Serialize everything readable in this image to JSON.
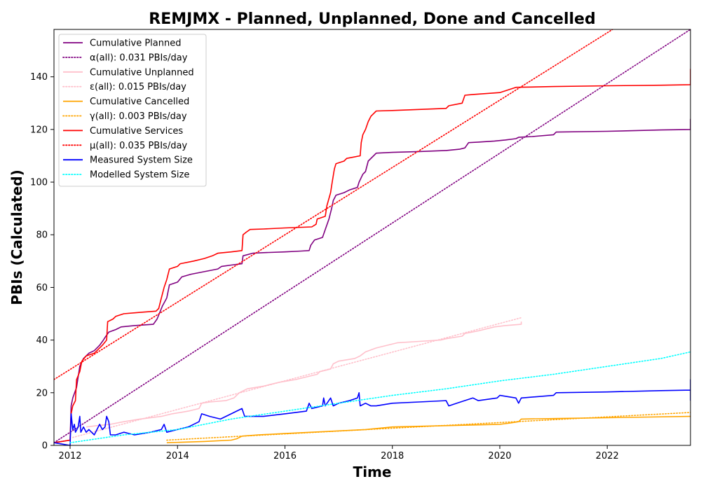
{
  "chart_data": {
    "type": "line",
    "title": "REMJMX - Planned, Unplanned, Done  and Cancelled",
    "xlabel": "Time",
    "ylabel": "PBIs (Calculated)",
    "xlim": [
      2011.7,
      2023.55
    ],
    "ylim": [
      0,
      158
    ],
    "x_ticks": [
      2012,
      2014,
      2016,
      2018,
      2020,
      2022
    ],
    "y_ticks": [
      0,
      20,
      40,
      60,
      80,
      100,
      120,
      140
    ],
    "grid": false,
    "legend_position": "upper-left",
    "series": [
      {
        "name": "Cumulative Planned",
        "color": "#800080",
        "style": "solid",
        "points": [
          [
            2011.7,
            1
          ],
          [
            2012.0,
            2
          ],
          [
            2012.02,
            15
          ],
          [
            2012.05,
            18
          ],
          [
            2012.12,
            22
          ],
          [
            2012.18,
            30
          ],
          [
            2012.25,
            33
          ],
          [
            2012.35,
            35
          ],
          [
            2012.45,
            36
          ],
          [
            2012.55,
            38
          ],
          [
            2012.62,
            40
          ],
          [
            2012.65,
            41
          ],
          [
            2012.72,
            43
          ],
          [
            2012.85,
            44
          ],
          [
            2012.95,
            45
          ],
          [
            2013.2,
            45.5
          ],
          [
            2013.55,
            46
          ],
          [
            2013.62,
            48
          ],
          [
            2013.72,
            53
          ],
          [
            2013.8,
            56
          ],
          [
            2013.85,
            61
          ],
          [
            2014.0,
            62
          ],
          [
            2014.08,
            64
          ],
          [
            2014.25,
            65
          ],
          [
            2014.5,
            66
          ],
          [
            2014.75,
            67
          ],
          [
            2014.82,
            68
          ],
          [
            2015.0,
            68.5
          ],
          [
            2015.2,
            69
          ],
          [
            2015.22,
            72
          ],
          [
            2015.4,
            73
          ],
          [
            2015.6,
            73.2
          ],
          [
            2016.0,
            73.5
          ],
          [
            2016.3,
            73.8
          ],
          [
            2016.45,
            74
          ],
          [
            2016.48,
            76
          ],
          [
            2016.55,
            78
          ],
          [
            2016.7,
            79
          ],
          [
            2016.75,
            82
          ],
          [
            2016.82,
            86
          ],
          [
            2016.87,
            90
          ],
          [
            2016.9,
            93
          ],
          [
            2016.95,
            95
          ],
          [
            2017.1,
            96
          ],
          [
            2017.2,
            97
          ],
          [
            2017.35,
            98
          ],
          [
            2017.38,
            100
          ],
          [
            2017.45,
            103
          ],
          [
            2017.5,
            104
          ],
          [
            2017.55,
            108
          ],
          [
            2017.65,
            110
          ],
          [
            2017.7,
            111
          ],
          [
            2018.0,
            111.3
          ],
          [
            2018.5,
            111.6
          ],
          [
            2019.0,
            112
          ],
          [
            2019.25,
            112.5
          ],
          [
            2019.35,
            113
          ],
          [
            2019.42,
            115
          ],
          [
            2019.6,
            115.2
          ],
          [
            2019.9,
            115.6
          ],
          [
            2020.1,
            116
          ],
          [
            2020.3,
            116.5
          ],
          [
            2020.35,
            117
          ],
          [
            2020.6,
            117.3
          ],
          [
            2021.0,
            118
          ],
          [
            2021.05,
            119
          ],
          [
            2022.0,
            119.3
          ],
          [
            2023.0,
            119.8
          ],
          [
            2023.55,
            120
          ],
          [
            2023.55,
            124
          ]
        ]
      },
      {
        "name": "α(all): 0.031 PBIs/day",
        "color": "#800080",
        "style": "dotted",
        "points": [
          [
            2011.7,
            1
          ],
          [
            2023.55,
            158
          ]
        ]
      },
      {
        "name": "Cumulative Unplanned",
        "color": "#ffc0cb",
        "style": "solid",
        "points": [
          [
            2012.3,
            7
          ],
          [
            2012.5,
            7.5
          ],
          [
            2012.75,
            8
          ],
          [
            2013.0,
            9
          ],
          [
            2013.3,
            10
          ],
          [
            2013.7,
            11
          ],
          [
            2013.9,
            12
          ],
          [
            2014.2,
            13
          ],
          [
            2014.4,
            14
          ],
          [
            2014.45,
            16
          ],
          [
            2014.6,
            16.5
          ],
          [
            2014.9,
            17
          ],
          [
            2015.05,
            18
          ],
          [
            2015.15,
            20
          ],
          [
            2015.3,
            21.5
          ],
          [
            2015.6,
            22.5
          ],
          [
            2015.9,
            24
          ],
          [
            2016.2,
            25
          ],
          [
            2016.5,
            26.5
          ],
          [
            2016.6,
            27
          ],
          [
            2016.65,
            28
          ],
          [
            2016.85,
            29
          ],
          [
            2016.9,
            31
          ],
          [
            2017.0,
            32
          ],
          [
            2017.3,
            33
          ],
          [
            2017.4,
            34
          ],
          [
            2017.5,
            35.5
          ],
          [
            2017.7,
            37
          ],
          [
            2017.9,
            38
          ],
          [
            2018.1,
            39
          ],
          [
            2018.5,
            39.5
          ],
          [
            2018.9,
            40
          ],
          [
            2019.0,
            40.5
          ],
          [
            2019.3,
            41.5
          ],
          [
            2019.35,
            42.5
          ],
          [
            2019.6,
            43.5
          ],
          [
            2019.7,
            44
          ],
          [
            2019.9,
            45
          ],
          [
            2020.1,
            45.5
          ],
          [
            2020.4,
            46
          ],
          [
            2020.4,
            47
          ]
        ]
      },
      {
        "name": "ε(all): 0.015 PBIs/day",
        "color": "#ffc0cb",
        "style": "dotted",
        "points": [
          [
            2012.05,
            3
          ],
          [
            2020.4,
            48.5
          ]
        ]
      },
      {
        "name": "Cumulative Cancelled",
        "color": "#ffa500",
        "style": "solid",
        "points": [
          [
            2013.8,
            1
          ],
          [
            2014.5,
            1.5
          ],
          [
            2015.0,
            2
          ],
          [
            2015.1,
            2.5
          ],
          [
            2015.2,
            3.5
          ],
          [
            2015.5,
            4
          ],
          [
            2016.0,
            4.5
          ],
          [
            2016.5,
            5
          ],
          [
            2017.0,
            5.5
          ],
          [
            2017.5,
            6
          ],
          [
            2017.75,
            6.5
          ],
          [
            2018.0,
            7
          ],
          [
            2019.0,
            7.5
          ],
          [
            2020.0,
            8
          ],
          [
            2020.2,
            8.5
          ],
          [
            2020.35,
            9
          ],
          [
            2020.4,
            10
          ],
          [
            2021.0,
            10.2
          ],
          [
            2022.0,
            10.5
          ],
          [
            2023.55,
            11
          ]
        ]
      },
      {
        "name": "γ(all): 0.003 PBIs/day",
        "color": "#ffa500",
        "style": "dotted",
        "points": [
          [
            2013.8,
            2
          ],
          [
            2023.55,
            12.5
          ]
        ]
      },
      {
        "name": "Cumulative Services",
        "color": "#ff0000",
        "style": "solid",
        "points": [
          [
            2011.7,
            1
          ],
          [
            2012.0,
            2
          ],
          [
            2012.02,
            12
          ],
          [
            2012.05,
            15
          ],
          [
            2012.1,
            17
          ],
          [
            2012.12,
            25
          ],
          [
            2012.18,
            28
          ],
          [
            2012.22,
            32
          ],
          [
            2012.3,
            34
          ],
          [
            2012.45,
            35
          ],
          [
            2012.55,
            37
          ],
          [
            2012.6,
            38
          ],
          [
            2012.68,
            40
          ],
          [
            2012.7,
            47
          ],
          [
            2012.8,
            48
          ],
          [
            2012.85,
            49
          ],
          [
            2013.0,
            50
          ],
          [
            2013.3,
            50.5
          ],
          [
            2013.6,
            51
          ],
          [
            2013.65,
            52
          ],
          [
            2013.7,
            56
          ],
          [
            2013.75,
            60
          ],
          [
            2013.8,
            63
          ],
          [
            2013.85,
            67
          ],
          [
            2014.0,
            68
          ],
          [
            2014.05,
            69
          ],
          [
            2014.3,
            70
          ],
          [
            2014.5,
            71
          ],
          [
            2014.65,
            72
          ],
          [
            2014.75,
            73
          ],
          [
            2015.0,
            73.5
          ],
          [
            2015.2,
            74
          ],
          [
            2015.22,
            80
          ],
          [
            2015.28,
            81
          ],
          [
            2015.35,
            82
          ],
          [
            2015.6,
            82.2
          ],
          [
            2016.0,
            82.6
          ],
          [
            2016.5,
            83
          ],
          [
            2016.58,
            84
          ],
          [
            2016.6,
            86
          ],
          [
            2016.75,
            87
          ],
          [
            2016.78,
            91
          ],
          [
            2016.85,
            96
          ],
          [
            2016.88,
            100
          ],
          [
            2016.92,
            105
          ],
          [
            2016.95,
            107
          ],
          [
            2017.1,
            108
          ],
          [
            2017.15,
            109
          ],
          [
            2017.4,
            110
          ],
          [
            2017.42,
            115
          ],
          [
            2017.45,
            118
          ],
          [
            2017.5,
            120
          ],
          [
            2017.55,
            123
          ],
          [
            2017.6,
            125
          ],
          [
            2017.7,
            127
          ],
          [
            2018.0,
            127.2
          ],
          [
            2019.0,
            128
          ],
          [
            2019.05,
            129
          ],
          [
            2019.3,
            130
          ],
          [
            2019.35,
            133
          ],
          [
            2019.5,
            133.3
          ],
          [
            2020.0,
            134
          ],
          [
            2020.15,
            135
          ],
          [
            2020.3,
            136
          ],
          [
            2021.0,
            136.3
          ],
          [
            2022.0,
            136.6
          ],
          [
            2023.0,
            136.8
          ],
          [
            2023.55,
            137
          ],
          [
            2023.55,
            143
          ]
        ]
      },
      {
        "name": "μ(all): 0.035 PBIs/day",
        "color": "#ff0000",
        "style": "dotted",
        "points": [
          [
            2011.7,
            25
          ],
          [
            2022.1,
            158
          ]
        ]
      },
      {
        "name": "Measured System Size",
        "color": "#0000ff",
        "style": "solid",
        "points": [
          [
            2011.7,
            1
          ],
          [
            2012.0,
            0
          ],
          [
            2012.02,
            12
          ],
          [
            2012.05,
            6
          ],
          [
            2012.08,
            8
          ],
          [
            2012.1,
            5
          ],
          [
            2012.15,
            7
          ],
          [
            2012.18,
            11
          ],
          [
            2012.2,
            5
          ],
          [
            2012.25,
            7
          ],
          [
            2012.3,
            5
          ],
          [
            2012.35,
            6
          ],
          [
            2012.45,
            4
          ],
          [
            2012.55,
            8
          ],
          [
            2012.6,
            6
          ],
          [
            2012.65,
            7
          ],
          [
            2012.68,
            11
          ],
          [
            2012.72,
            9
          ],
          [
            2012.75,
            4
          ],
          [
            2012.85,
            4
          ],
          [
            2013.0,
            5
          ],
          [
            2013.2,
            4
          ],
          [
            2013.5,
            5
          ],
          [
            2013.7,
            6
          ],
          [
            2013.75,
            8
          ],
          [
            2013.8,
            5
          ],
          [
            2014.0,
            6
          ],
          [
            2014.2,
            7
          ],
          [
            2014.4,
            9
          ],
          [
            2014.45,
            12
          ],
          [
            2014.6,
            11
          ],
          [
            2014.8,
            10
          ],
          [
            2015.0,
            12
          ],
          [
            2015.1,
            13
          ],
          [
            2015.2,
            14
          ],
          [
            2015.25,
            11
          ],
          [
            2015.4,
            11
          ],
          [
            2015.6,
            11
          ],
          [
            2016.0,
            12
          ],
          [
            2016.4,
            13
          ],
          [
            2016.45,
            16
          ],
          [
            2016.5,
            14
          ],
          [
            2016.7,
            15
          ],
          [
            2016.72,
            18
          ],
          [
            2016.75,
            15
          ],
          [
            2016.85,
            18
          ],
          [
            2016.9,
            15
          ],
          [
            2017.0,
            16
          ],
          [
            2017.2,
            17
          ],
          [
            2017.35,
            18
          ],
          [
            2017.38,
            20
          ],
          [
            2017.4,
            15
          ],
          [
            2017.5,
            16
          ],
          [
            2017.6,
            15
          ],
          [
            2017.7,
            15
          ],
          [
            2018.0,
            16
          ],
          [
            2018.5,
            16.5
          ],
          [
            2019.0,
            17
          ],
          [
            2019.05,
            15
          ],
          [
            2019.2,
            16
          ],
          [
            2019.5,
            18
          ],
          [
            2019.6,
            17
          ],
          [
            2019.95,
            18
          ],
          [
            2020.0,
            19
          ],
          [
            2020.3,
            18
          ],
          [
            2020.35,
            16
          ],
          [
            2020.4,
            18
          ],
          [
            2021.0,
            19
          ],
          [
            2021.05,
            20
          ],
          [
            2022.0,
            20.3
          ],
          [
            2023.0,
            20.8
          ],
          [
            2023.55,
            21
          ],
          [
            2023.55,
            25
          ],
          [
            2023.55,
            17
          ]
        ]
      },
      {
        "name": "Modelled System Size",
        "color": "#00ffff",
        "style": "dotted",
        "points": [
          [
            2012.0,
            1
          ],
          [
            2013.0,
            4
          ],
          [
            2014.0,
            6
          ],
          [
            2015.0,
            10
          ],
          [
            2016.0,
            13
          ],
          [
            2017.0,
            16
          ],
          [
            2018.0,
            19
          ],
          [
            2019.0,
            21.5
          ],
          [
            2020.0,
            24.5
          ],
          [
            2021.0,
            27
          ],
          [
            2022.0,
            30
          ],
          [
            2023.0,
            33
          ],
          [
            2023.55,
            35.5
          ]
        ]
      }
    ]
  }
}
